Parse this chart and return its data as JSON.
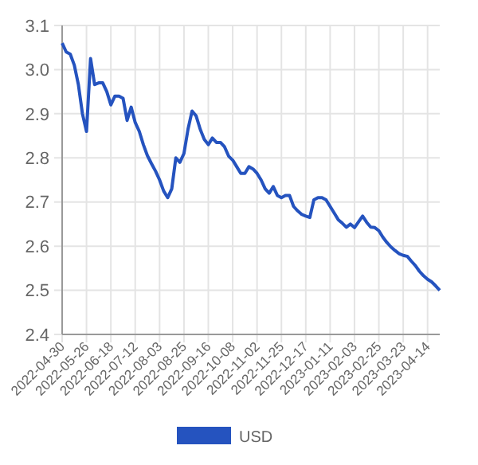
{
  "chart_data": {
    "type": "line",
    "categories": [
      "2022-04-30",
      null,
      null,
      null,
      null,
      null,
      "2022-05-26",
      null,
      null,
      null,
      null,
      null,
      "2022-06-18",
      null,
      null,
      null,
      null,
      null,
      "2022-07-12",
      null,
      null,
      null,
      null,
      null,
      "2022-08-03",
      null,
      null,
      null,
      null,
      null,
      "2022-08-25",
      null,
      null,
      null,
      null,
      null,
      "2022-09-16",
      null,
      null,
      null,
      null,
      null,
      "2022-10-08",
      null,
      null,
      null,
      null,
      null,
      "2022-11-02",
      null,
      null,
      null,
      null,
      null,
      "2022-11-25",
      null,
      null,
      null,
      null,
      null,
      "2022-12-17",
      null,
      null,
      null,
      null,
      null,
      "2023-01-11",
      null,
      null,
      null,
      null,
      null,
      "2023-02-03",
      null,
      null,
      null,
      null,
      null,
      "2023-02-25",
      null,
      null,
      null,
      null,
      null,
      "2023-03-23",
      null,
      null,
      null,
      null,
      null,
      "2023-04-14",
      null,
      null,
      null
    ],
    "series": [
      {
        "name": "USD",
        "color": "#2553bf",
        "values": [
          3.06,
          3.04,
          3.035,
          3.01,
          2.966,
          2.9,
          2.86,
          3.025,
          2.966,
          2.97,
          2.97,
          2.95,
          2.92,
          2.94,
          2.94,
          2.935,
          2.885,
          2.915,
          2.88,
          2.86,
          2.83,
          2.805,
          2.787,
          2.77,
          2.75,
          2.725,
          2.71,
          2.73,
          2.8,
          2.79,
          2.81,
          2.865,
          2.906,
          2.895,
          2.865,
          2.842,
          2.83,
          2.845,
          2.835,
          2.835,
          2.825,
          2.804,
          2.795,
          2.78,
          2.765,
          2.765,
          2.78,
          2.775,
          2.765,
          2.75,
          2.73,
          2.72,
          2.735,
          2.715,
          2.71,
          2.715,
          2.715,
          2.69,
          2.68,
          2.672,
          2.668,
          2.665,
          2.705,
          2.71,
          2.71,
          2.705,
          2.69,
          2.675,
          2.66,
          2.652,
          2.643,
          2.65,
          2.642,
          2.655,
          2.668,
          2.654,
          2.643,
          2.642,
          2.635,
          2.62,
          2.608,
          2.598,
          2.59,
          2.583,
          2.579,
          2.577,
          2.566,
          2.556,
          2.543,
          2.533,
          2.525,
          2.519,
          2.51,
          2.5
        ]
      }
    ],
    "ylim": [
      2.4,
      3.1
    ],
    "yticks": [
      {
        "value": 2.4,
        "label": "2.4"
      },
      {
        "value": 2.5,
        "label": "2.5"
      },
      {
        "value": 2.6,
        "label": "2.6"
      },
      {
        "value": 2.7,
        "label": "2.7"
      },
      {
        "value": 2.8,
        "label": "2.8"
      },
      {
        "value": 2.9,
        "label": "2.9"
      },
      {
        "value": 3.0,
        "label": "3.0"
      },
      {
        "value": 3.1,
        "label": "3.1"
      }
    ],
    "grid": true,
    "legend": "bottom",
    "marker": "none",
    "line_style": "solid"
  }
}
